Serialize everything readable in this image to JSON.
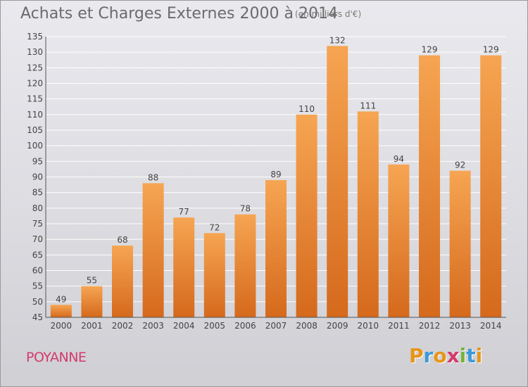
{
  "header": {
    "title": "Achats et Charges Externes 2000 à 2014",
    "subtitle": "(en milliers d'€)"
  },
  "footer": {
    "commune": "POYANNE",
    "logo_letters": [
      "P",
      "r",
      "o",
      "x",
      "i",
      "t",
      "i"
    ],
    "logo_colors": [
      "#e8951a",
      "#3c9ad6",
      "#e8951a",
      "#d33a6a",
      "#74b53a",
      "#3c9ad6",
      "#e8951a"
    ]
  },
  "colors": {
    "bar_top": "#f6a552",
    "bar_bottom": "#d5691c",
    "grid": "#ffffff",
    "axis_text": "#444444"
  },
  "chart_data": {
    "type": "bar",
    "categories": [
      "2000",
      "2001",
      "2002",
      "2003",
      "2004",
      "2005",
      "2006",
      "2007",
      "2008",
      "2009",
      "2010",
      "2011",
      "2012",
      "2013",
      "2014"
    ],
    "values": [
      49,
      55,
      68,
      88,
      77,
      72,
      78,
      89,
      110,
      132,
      111,
      94,
      129,
      92,
      129
    ],
    "ylim": [
      45,
      135
    ],
    "yticks": [
      45,
      50,
      55,
      60,
      65,
      70,
      75,
      80,
      85,
      90,
      95,
      100,
      105,
      110,
      115,
      120,
      125,
      130,
      135
    ],
    "grid": true,
    "data_labels": true
  }
}
